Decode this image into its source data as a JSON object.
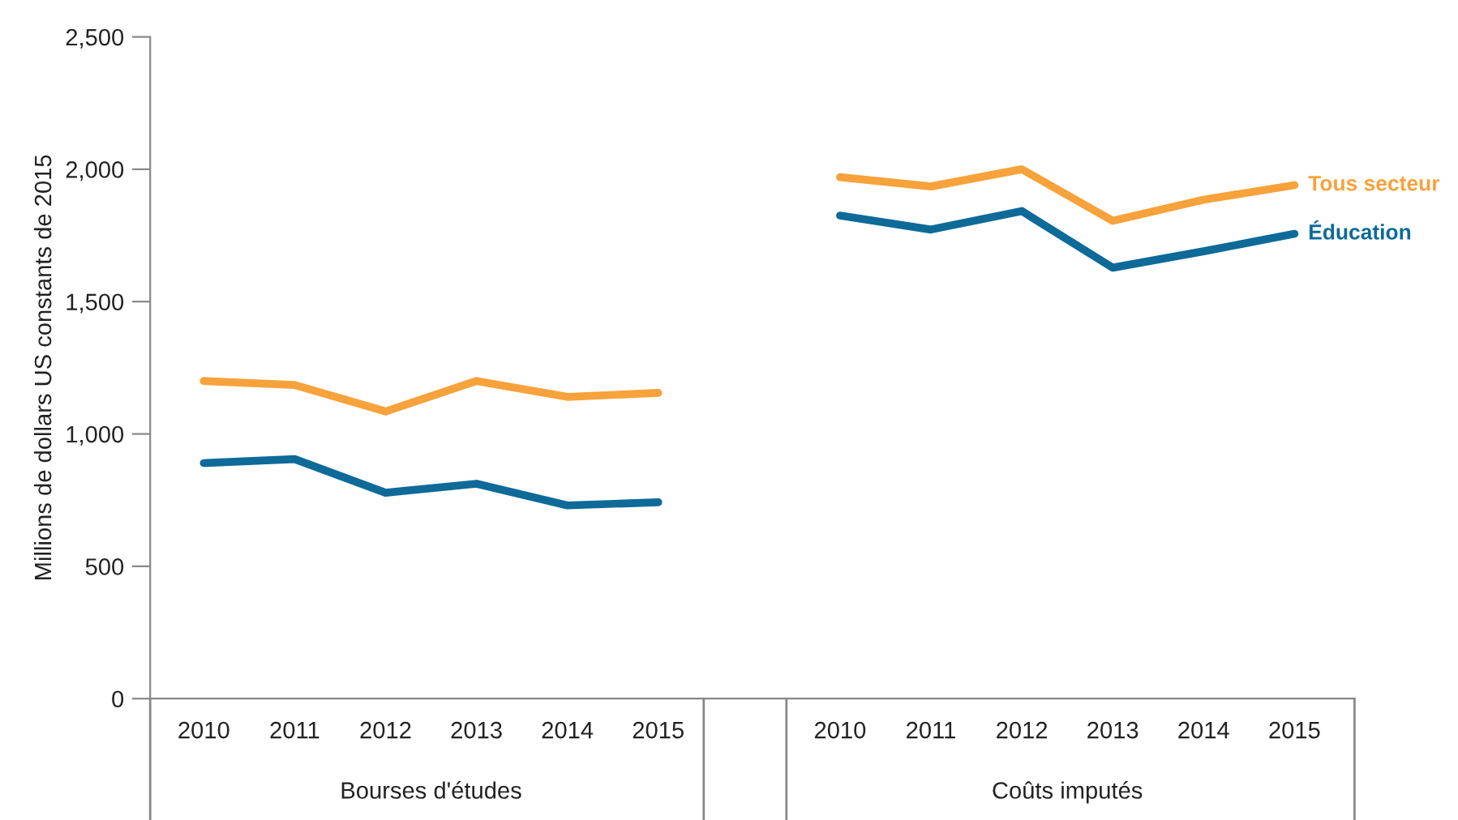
{
  "chart_data": {
    "type": "line",
    "ylabel": "Millions de dollars US constants de 2015",
    "categories": [
      "2010",
      "2011",
      "2012",
      "2013",
      "2014",
      "2015",
      null,
      "2010",
      "2011",
      "2012",
      "2013",
      "2014",
      "2015"
    ],
    "series": [
      {
        "name": "Tous secteur",
        "color": "#f7a23b",
        "values": [
          1200,
          1185,
          1085,
          1200,
          1140,
          1155,
          null,
          1970,
          1935,
          2000,
          1805,
          1885,
          1940
        ]
      },
      {
        "name": "Éducation",
        "color": "#0e6a98",
        "values": [
          890,
          905,
          778,
          812,
          730,
          742,
          null,
          1825,
          1772,
          1842,
          1628,
          1690,
          1756
        ]
      }
    ],
    "ylim": [
      0,
      2500
    ],
    "yticks": [
      0,
      {
        "value": 500,
        "label": "500"
      },
      {
        "value": 1000,
        "label": "1,000"
      },
      {
        "value": 1500,
        "label": "1,500"
      },
      {
        "value": 2000,
        "label": "2,000"
      },
      {
        "value": 2500,
        "label": "2,500"
      }
    ],
    "grid": false,
    "annotations": [
      "Bourses d'études",
      "Coûts imputés"
    ]
  }
}
